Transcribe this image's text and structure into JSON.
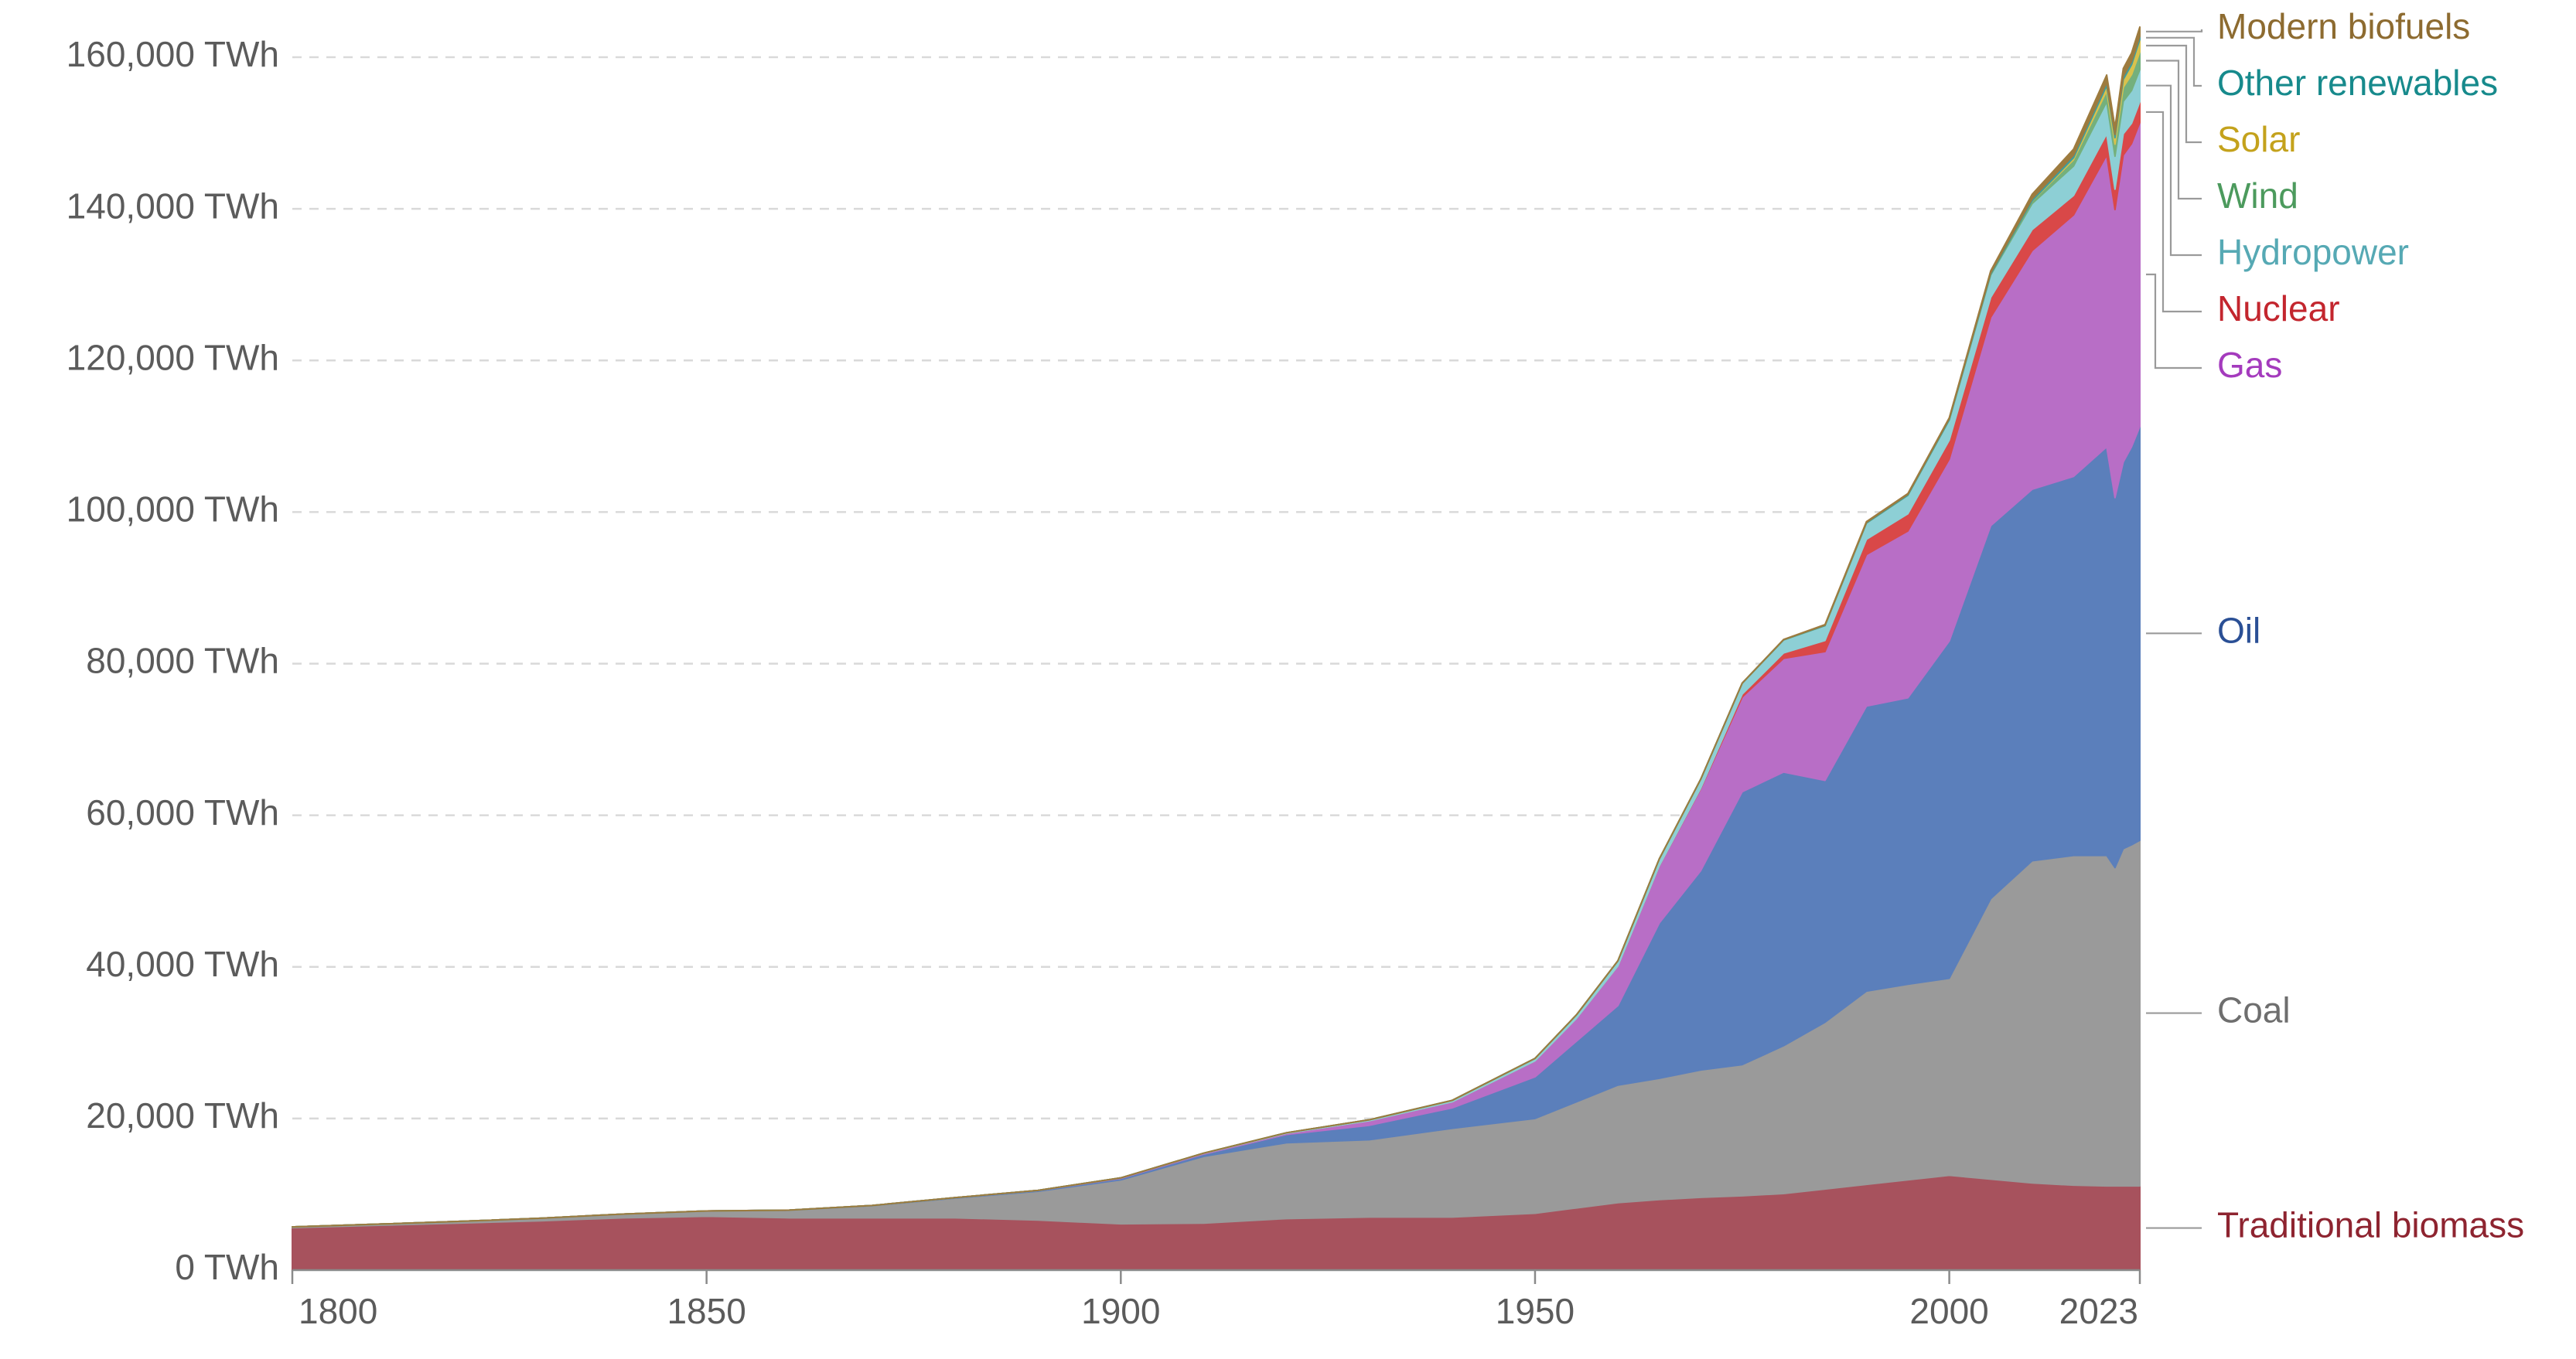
{
  "chart_data": {
    "type": "stacked-area",
    "x": [
      1800,
      1810,
      1820,
      1830,
      1840,
      1850,
      1860,
      1870,
      1880,
      1890,
      1900,
      1910,
      1920,
      1930,
      1940,
      1950,
      1955,
      1960,
      1965,
      1970,
      1975,
      1980,
      1985,
      1990,
      1995,
      2000,
      2005,
      2010,
      2015,
      2019,
      2020,
      2021,
      2022,
      2023
    ],
    "xlim": [
      1800,
      2023
    ],
    "xticks": [
      1800,
      1850,
      1900,
      1950,
      2000,
      2023
    ],
    "ylim": [
      0,
      165000
    ],
    "yticks": [
      {
        "value": 0,
        "label": "0 TWh"
      },
      {
        "value": 20000,
        "label": "20,000 TWh"
      },
      {
        "value": 40000,
        "label": "40,000 TWh"
      },
      {
        "value": 60000,
        "label": "60,000 TWh"
      },
      {
        "value": 80000,
        "label": "80,000 TWh"
      },
      {
        "value": 100000,
        "label": "100,000 TWh"
      },
      {
        "value": 120000,
        "label": "120,000 TWh"
      },
      {
        "value": 140000,
        "label": "140,000 TWh"
      },
      {
        "value": 160000,
        "label": "160,000 TWh"
      }
    ],
    "grid": true,
    "series": [
      {
        "name": "Traditional biomass",
        "color": "#a7525d",
        "label_color": "#8e2430",
        "values": [
          5600,
          5900,
          6200,
          6500,
          6900,
          7100,
          6900,
          6900,
          6900,
          6600,
          6100,
          6200,
          6800,
          7000,
          7000,
          7500,
          8200,
          8900,
          9300,
          9600,
          9800,
          10100,
          10700,
          11300,
          11900,
          12500,
          12000,
          11500,
          11200,
          11100,
          11100,
          11100,
          11100,
          11100
        ]
      },
      {
        "name": "Coal",
        "color": "#9a9a9a",
        "label_color": "#6e6e6e",
        "values": [
          100,
          150,
          220,
          350,
          500,
          700,
          1000,
          1600,
          2600,
          3800,
          5800,
          8800,
          10000,
          10200,
          11700,
          12500,
          14000,
          15500,
          16000,
          16800,
          17300,
          19500,
          22000,
          25500,
          25800,
          26000,
          37000,
          42500,
          43500,
          43600,
          42000,
          44500,
          45000,
          45600
        ]
      },
      {
        "name": "Oil",
        "color": "#5b7fbb",
        "label_color": "#2a4f95",
        "values": [
          0,
          0,
          0,
          0,
          0,
          0,
          10,
          30,
          60,
          100,
          200,
          300,
          1100,
          1900,
          2700,
          5500,
          8000,
          10500,
          20500,
          26300,
          36000,
          36100,
          31900,
          37600,
          37800,
          44500,
          49200,
          49000,
          50000,
          53900,
          48800,
          51000,
          52500,
          54600
        ]
      },
      {
        "name": "Gas",
        "color": "#b86ec6",
        "label_color": "#a43bbd",
        "values": [
          0,
          0,
          0,
          0,
          0,
          0,
          0,
          0,
          0,
          20,
          60,
          100,
          150,
          600,
          800,
          2100,
          3000,
          5200,
          7500,
          10800,
          12500,
          15000,
          17000,
          20000,
          22000,
          24000,
          27500,
          31500,
          34500,
          38500,
          38000,
          40500,
          40000,
          40100
        ]
      },
      {
        "name": "Nuclear",
        "color": "#d94848",
        "label_color": "#c3262e",
        "values": [
          0,
          0,
          0,
          0,
          0,
          0,
          0,
          0,
          0,
          0,
          0,
          0,
          0,
          0,
          0,
          0,
          0,
          10,
          30,
          80,
          380,
          710,
          1460,
          2000,
          2270,
          2500,
          2630,
          2760,
          2570,
          2800,
          2690,
          2800,
          2680,
          2740
        ]
      },
      {
        "name": "Hydropower",
        "color": "#8dcfd5",
        "label_color": "#56a9b4",
        "values": [
          0,
          0,
          0,
          0,
          0,
          0,
          0,
          0,
          0,
          0,
          10,
          30,
          70,
          130,
          190,
          330,
          480,
          690,
          920,
          1180,
          1430,
          1720,
          1960,
          2150,
          2450,
          2650,
          2940,
          3430,
          3880,
          4240,
          4350,
          4280,
          4330,
          4240
        ]
      },
      {
        "name": "Wind",
        "color": "#74b07c",
        "label_color": "#4c9a5d",
        "values": [
          0,
          0,
          0,
          0,
          0,
          0,
          0,
          0,
          0,
          0,
          0,
          0,
          0,
          0,
          0,
          0,
          0,
          0,
          0,
          0,
          0,
          0,
          0,
          0,
          0,
          30,
          100,
          340,
          830,
          1420,
          1590,
          1850,
          2100,
          2330
        ]
      },
      {
        "name": "Solar",
        "color": "#d9c24c",
        "label_color": "#c4a21c",
        "values": [
          0,
          0,
          0,
          0,
          0,
          0,
          0,
          0,
          0,
          0,
          0,
          0,
          0,
          0,
          0,
          0,
          0,
          0,
          0,
          0,
          0,
          0,
          0,
          0,
          0,
          0,
          4,
          33,
          256,
          700,
          850,
          1040,
          1310,
          1640
        ]
      },
      {
        "name": "Other renewables",
        "color": "#3f9c9c",
        "label_color": "#178a8c",
        "values": [
          0,
          0,
          0,
          0,
          0,
          0,
          0,
          0,
          0,
          0,
          0,
          0,
          0,
          0,
          0,
          0,
          0,
          0,
          0,
          10,
          20,
          40,
          70,
          90,
          120,
          160,
          200,
          270,
          360,
          420,
          430,
          440,
          440,
          440
        ]
      },
      {
        "name": "Modern biofuels",
        "color": "#9d7b3f",
        "label_color": "#8d6b30",
        "values": [
          0,
          0,
          0,
          0,
          0,
          0,
          0,
          0,
          0,
          0,
          0,
          0,
          0,
          0,
          0,
          0,
          0,
          0,
          0,
          0,
          0,
          30,
          70,
          100,
          100,
          110,
          250,
          590,
          780,
          980,
          930,
          1000,
          1100,
          1200
        ]
      }
    ]
  }
}
